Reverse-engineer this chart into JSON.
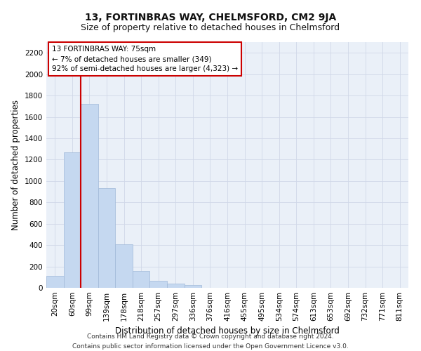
{
  "title": "13, FORTINBRAS WAY, CHELMSFORD, CM2 9JA",
  "subtitle": "Size of property relative to detached houses in Chelmsford",
  "xlabel": "Distribution of detached houses by size in Chelmsford",
  "ylabel": "Number of detached properties",
  "footer_line1": "Contains HM Land Registry data © Crown copyright and database right 2024.",
  "footer_line2": "Contains public sector information licensed under the Open Government Licence v3.0.",
  "bar_labels": [
    "20sqm",
    "60sqm",
    "99sqm",
    "139sqm",
    "178sqm",
    "218sqm",
    "257sqm",
    "297sqm",
    "336sqm",
    "376sqm",
    "416sqm",
    "455sqm",
    "495sqm",
    "534sqm",
    "574sqm",
    "613sqm",
    "653sqm",
    "692sqm",
    "732sqm",
    "771sqm",
    "811sqm"
  ],
  "bar_values": [
    110,
    1270,
    1720,
    935,
    410,
    155,
    65,
    38,
    25,
    0,
    0,
    0,
    0,
    0,
    0,
    0,
    0,
    0,
    0,
    0,
    0
  ],
  "bar_color": "#c5d8f0",
  "bar_edge_color": "#a0b8d8",
  "vline_bar_index": 1,
  "vline_color": "#cc0000",
  "annotation_text": "13 FORTINBRAS WAY: 75sqm\n← 7% of detached houses are smaller (349)\n92% of semi-detached houses are larger (4,323) →",
  "annotation_box_color": "#cc0000",
  "ylim": [
    0,
    2300
  ],
  "yticks": [
    0,
    200,
    400,
    600,
    800,
    1000,
    1200,
    1400,
    1600,
    1800,
    2000,
    2200
  ],
  "grid_color": "#d0d8e8",
  "plot_bg_color": "#eaf0f8",
  "title_fontsize": 10,
  "subtitle_fontsize": 9,
  "xlabel_fontsize": 8.5,
  "ylabel_fontsize": 8.5,
  "tick_fontsize": 7.5,
  "annotation_fontsize": 7.5,
  "footer_fontsize": 6.5
}
